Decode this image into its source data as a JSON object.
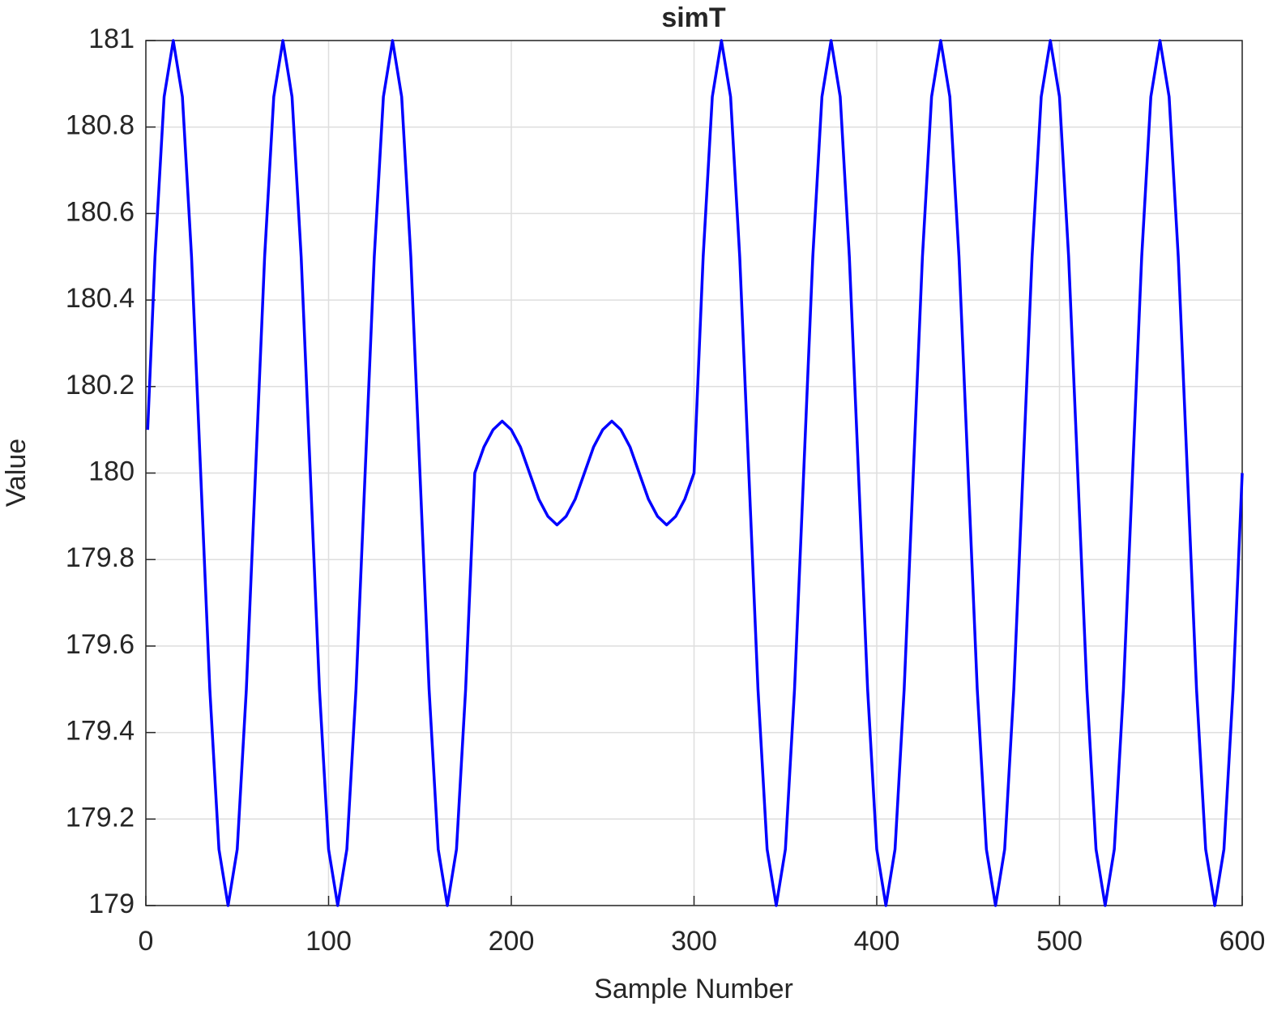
{
  "chart_data": {
    "type": "line",
    "title": "simT",
    "xlabel": "Sample Number",
    "ylabel": "Value",
    "xlim": [
      0,
      600
    ],
    "ylim": [
      179,
      181
    ],
    "xticks": [
      0,
      100,
      200,
      300,
      400,
      500,
      600
    ],
    "yticks": [
      179,
      179.2,
      179.4,
      179.6,
      179.8,
      180,
      180.2,
      180.4,
      180.6,
      180.8,
      181
    ],
    "grid": true,
    "x": [
      1,
      5,
      10,
      15,
      20,
      25,
      30,
      35,
      40,
      45,
      50,
      55,
      60,
      65,
      70,
      75,
      80,
      85,
      90,
      95,
      100,
      105,
      110,
      115,
      120,
      125,
      130,
      135,
      140,
      145,
      150,
      155,
      160,
      165,
      170,
      175,
      180,
      185,
      190,
      195,
      200,
      205,
      210,
      215,
      220,
      225,
      230,
      235,
      240,
      245,
      250,
      255,
      260,
      265,
      270,
      275,
      280,
      285,
      290,
      295,
      300,
      305,
      310,
      315,
      320,
      325,
      330,
      335,
      340,
      345,
      350,
      355,
      360,
      365,
      370,
      375,
      380,
      385,
      390,
      395,
      400,
      405,
      410,
      415,
      420,
      425,
      430,
      435,
      440,
      445,
      450,
      455,
      460,
      465,
      470,
      475,
      480,
      485,
      490,
      495,
      500,
      505,
      510,
      515,
      520,
      525,
      530,
      535,
      540,
      545,
      550,
      555,
      560,
      565,
      570,
      575,
      580,
      585,
      590,
      595,
      600
    ],
    "series": [
      {
        "name": "simT",
        "color": "#0000ff",
        "values": [
          180.1,
          180.5,
          180.87,
          181,
          180.87,
          180.5,
          180,
          179.5,
          179.13,
          179,
          179.13,
          179.5,
          180,
          180.5,
          180.87,
          181,
          180.87,
          180.5,
          180,
          179.5,
          179.13,
          179,
          179.13,
          179.5,
          180,
          180.5,
          180.87,
          181,
          180.87,
          180.5,
          180,
          179.5,
          179.13,
          179,
          179.13,
          179.5,
          180,
          180.06,
          180.1,
          180.12,
          180.1,
          180.06,
          180,
          179.94,
          179.9,
          179.88,
          179.9,
          179.94,
          180,
          180.06,
          180.1,
          180.12,
          180.1,
          180.06,
          180,
          179.94,
          179.9,
          179.88,
          179.9,
          179.94,
          180,
          180.5,
          180.87,
          181,
          180.87,
          180.5,
          180,
          179.5,
          179.13,
          179,
          179.13,
          179.5,
          180,
          180.5,
          180.87,
          181,
          180.87,
          180.5,
          180,
          179.5,
          179.13,
          179,
          179.13,
          179.5,
          180,
          180.5,
          180.87,
          181,
          180.87,
          180.5,
          180,
          179.5,
          179.13,
          179,
          179.13,
          179.5,
          180,
          180.5,
          180.87,
          181,
          180.87,
          180.5,
          180,
          179.5,
          179.13,
          179,
          179.13,
          179.5,
          180,
          180.5,
          180.87,
          181,
          180.87,
          180.5,
          180,
          179.5,
          179.13,
          179,
          179.13,
          179.5,
          180
        ]
      }
    ]
  }
}
